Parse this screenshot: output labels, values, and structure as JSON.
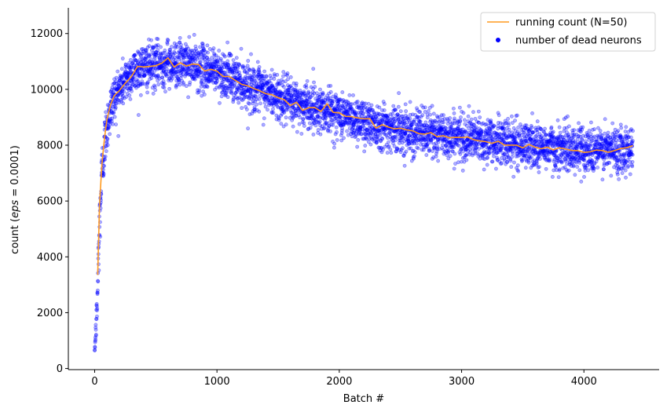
{
  "chart_data": {
    "type": "scatter",
    "xlabel": "Batch #",
    "ylabel_prefix": "count (",
    "ylabel_math": "eps",
    "ylabel_suffix": " = 0.0001)",
    "xlim": [
      -215,
      4615
    ],
    "ylim": [
      -40,
      12920
    ],
    "x_ticks": [
      0,
      1000,
      2000,
      3000,
      4000
    ],
    "y_ticks": [
      0,
      2000,
      4000,
      6000,
      8000,
      10000,
      12000
    ],
    "x_tick_labels": [
      "0",
      "1000",
      "2000",
      "3000",
      "4000"
    ],
    "y_tick_labels": [
      "0",
      "2000",
      "4000",
      "6000",
      "8000",
      "10000",
      "12000"
    ],
    "grid": false,
    "legend_position": "top-right",
    "series": [
      {
        "name": "running count (N=50)",
        "kind": "line",
        "color": "#ff9a1f",
        "x": [
          25,
          40,
          60,
          80,
          100,
          130,
          160,
          200,
          250,
          300,
          350,
          400,
          450,
          500,
          550,
          600,
          650,
          700,
          750,
          800,
          850,
          900,
          950,
          1000,
          1050,
          1100,
          1150,
          1200,
          1250,
          1300,
          1350,
          1400,
          1450,
          1500,
          1550,
          1600,
          1650,
          1700,
          1750,
          1800,
          1850,
          1900,
          1950,
          2000,
          2050,
          2100,
          2150,
          2200,
          2250,
          2300,
          2350,
          2400,
          2450,
          2500,
          2550,
          2600,
          2650,
          2700,
          2750,
          2800,
          2850,
          2900,
          2950,
          3000,
          3050,
          3100,
          3150,
          3200,
          3250,
          3300,
          3350,
          3400,
          3450,
          3500,
          3550,
          3600,
          3650,
          3700,
          3750,
          3800,
          3850,
          3900,
          3950,
          4000,
          4050,
          4100,
          4150,
          4200,
          4250,
          4300,
          4350,
          4400
        ],
        "y": [
          3350,
          5900,
          7350,
          8200,
          8900,
          9450,
          9800,
          9980,
          10250,
          10500,
          10800,
          10780,
          10850,
          10830,
          10900,
          11100,
          10850,
          10950,
          10800,
          10850,
          10900,
          10700,
          10700,
          10600,
          10500,
          10450,
          10280,
          10200,
          10100,
          10000,
          9950,
          9850,
          9800,
          9700,
          9620,
          9450,
          9500,
          9300,
          9350,
          9300,
          9200,
          9450,
          9150,
          9100,
          9000,
          9050,
          8950,
          8900,
          8900,
          8650,
          8700,
          8650,
          8600,
          8550,
          8600,
          8500,
          8450,
          8400,
          8450,
          8350,
          8300,
          8250,
          8300,
          8250,
          8250,
          8200,
          8150,
          8100,
          8100,
          8100,
          8050,
          8050,
          7980,
          7950,
          7980,
          7950,
          7920,
          7900,
          7850,
          7880,
          7900,
          7850,
          7850,
          7800,
          7780,
          7800,
          7830,
          7800,
          7850,
          7820,
          7900,
          7950
        ]
      },
      {
        "name": "number of dead neurons",
        "kind": "scatter",
        "color": "#0000ff",
        "n_points": 4400,
        "x_range": [
          0,
          4400
        ],
        "trend_x": [
          0,
          20,
          40,
          60,
          80,
          100,
          130,
          160,
          200,
          250,
          300,
          350,
          400,
          500,
          600,
          700,
          800,
          900,
          1000,
          1100,
          1200,
          1300,
          1400,
          1500,
          1600,
          1700,
          1800,
          1900,
          2000,
          2200,
          2400,
          2600,
          2800,
          3000,
          3200,
          3400,
          3600,
          3800,
          4000,
          4200,
          4400
        ],
        "trend_y": [
          600,
          2200,
          5200,
          7100,
          8000,
          8700,
          9300,
          9700,
          10000,
          10300,
          10550,
          10750,
          10800,
          10850,
          10950,
          10900,
          10850,
          10750,
          10650,
          10450,
          10250,
          10050,
          9900,
          9750,
          9550,
          9450,
          9350,
          9250,
          9100,
          8850,
          8650,
          8500,
          8380,
          8280,
          8180,
          8080,
          7980,
          7900,
          7850,
          7820,
          7900
        ],
        "spread_std": [
          20,
          400,
          600,
          500,
          500,
          450,
          450,
          420,
          400,
          400,
          400,
          400,
          400,
          400,
          400,
          400,
          400,
          400,
          400,
          400,
          400,
          400,
          400,
          400,
          400,
          400,
          400,
          400,
          400,
          400,
          400,
          400,
          400,
          400,
          400,
          400,
          400,
          400,
          400,
          400,
          400
        ]
      }
    ]
  },
  "legend": {
    "entries": [
      "running count (N=50)",
      "number of dead neurons"
    ]
  }
}
